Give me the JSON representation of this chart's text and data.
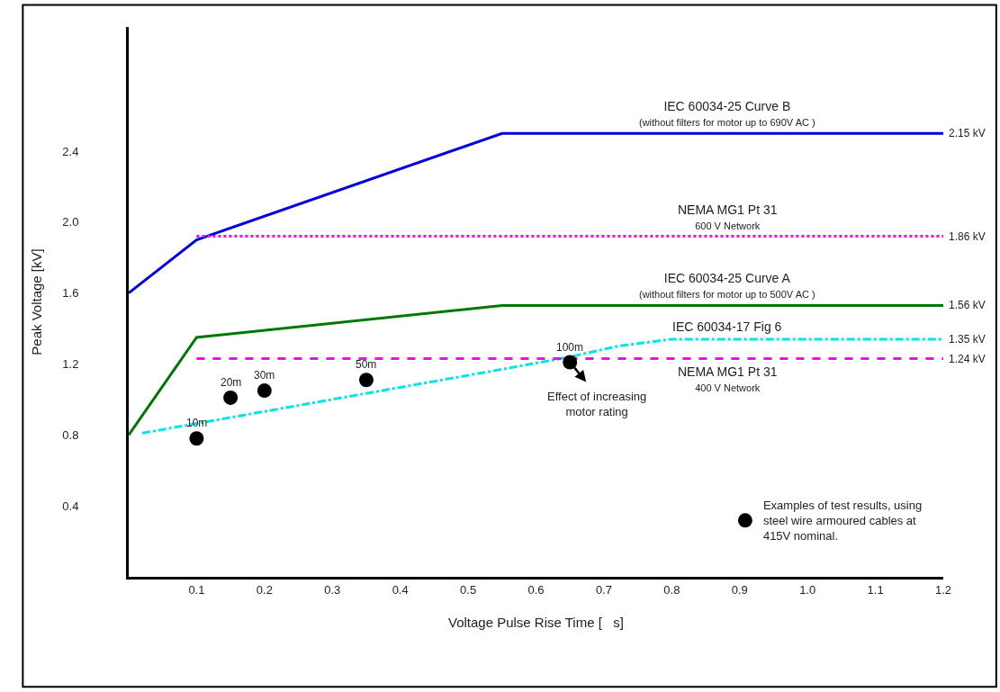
{
  "chart_data": {
    "type": "line",
    "xlabel": "Voltage Pulse Rise Time [   s]",
    "ylabel": "Peak Voltage [kV]",
    "xlim": [
      0,
      1.2
    ],
    "xticks": [
      0.1,
      0.2,
      0.3,
      0.4,
      0.5,
      0.6,
      0.7,
      0.8,
      0.9,
      {
        "value": 1,
        "label": "1.0"
      },
      1.1,
      1.2
    ],
    "ylim": [
      0,
      3.1
    ],
    "yticks": [
      0.4,
      0.8,
      1.2,
      1.6,
      {
        "value": 2,
        "label": "2.0"
      },
      2.4
    ],
    "legend": "bottom right",
    "series": [
      {
        "name": "IEC 60034-25 Curve B\n(without filters for motor up to 690V AC )",
        "color": "#0000dd",
        "line_style": "solid",
        "x": [
          0,
          0.1,
          0.55,
          1.2
        ],
        "values": [
          1.6,
          1.9,
          2.5,
          2.5
        ]
      },
      {
        "name": "NEMA MG1 Pt 31\n600 V Network",
        "color": "#ff00ff",
        "line_style": "dotted",
        "x": [
          0.1,
          1.2
        ],
        "values": [
          1.92,
          1.92
        ]
      },
      {
        "name": "IEC 60034-25 Curve A\n(without filters for motor up to 500V AC )",
        "color": "#007700",
        "line_style": "solid",
        "x": [
          0,
          0.1,
          0.55,
          1.2
        ],
        "values": [
          0.8,
          1.35,
          1.53,
          1.53
        ]
      },
      {
        "name": "IEC 60034-17 Fig 6",
        "color": "#00e5e5",
        "line_style": "dashdot",
        "x": [
          0.02,
          0.55,
          0.65,
          0.72,
          0.8,
          1.2
        ],
        "values": [
          0.81,
          1.17,
          1.24,
          1.3,
          1.34,
          1.34
        ]
      },
      {
        "name": "NEMA MG1 Pt 31\n400 V Network",
        "color": "#ff00ff",
        "line_style": "dashed",
        "x": [
          0.1,
          1.2
        ],
        "values": [
          1.23,
          1.23
        ]
      },
      {
        "type": "scatter",
        "name": "Examples of test results, using\nsteel wire armoured cables at\n415V nominal.",
        "color": "#000000",
        "marker": "circle",
        "x": [
          0.1,
          0.15,
          0.2,
          0.35,
          0.65
        ],
        "values": [
          0.78,
          1.01,
          1.05,
          1.11,
          1.21
        ]
      }
    ],
    "annotations": [
      {
        "text": "2.15 kV",
        "x": 1.2,
        "y": 2.5
      },
      {
        "text": "1.86 kV",
        "x": 1.2,
        "y": 1.92
      },
      {
        "text": "1.56 kV",
        "x": 1.2,
        "y": 1.53
      },
      {
        "text": "1.35 kV",
        "x": 1.2,
        "y": 1.34
      },
      {
        "text": "1.24 kV",
        "x": 1.2,
        "y": 1.23
      },
      {
        "text": "10m",
        "x": 0.1,
        "y": 0.78
      },
      {
        "text": "20m",
        "x": 0.15,
        "y": 1.01
      },
      {
        "text": "30m",
        "x": 0.2,
        "y": 1.05
      },
      {
        "text": "50m",
        "x": 0.35,
        "y": 1.11
      },
      {
        "text": "100m",
        "x": 0.65,
        "y": 1.21
      },
      {
        "text": "Effect of increasing\nmotor rating",
        "x": 0.65,
        "y": 1.21
      }
    ]
  }
}
